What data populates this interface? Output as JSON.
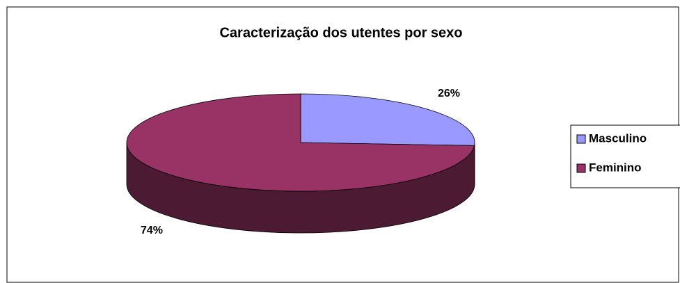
{
  "chart_data": {
    "type": "pie",
    "title": "Caracterização dos utentes por sexo",
    "categories": [
      "Masculino",
      "Feminino"
    ],
    "values": [
      26,
      74
    ],
    "value_labels": [
      "26%",
      "74%"
    ],
    "colors": [
      "#9999ff",
      "#993366"
    ],
    "legend": "right"
  }
}
